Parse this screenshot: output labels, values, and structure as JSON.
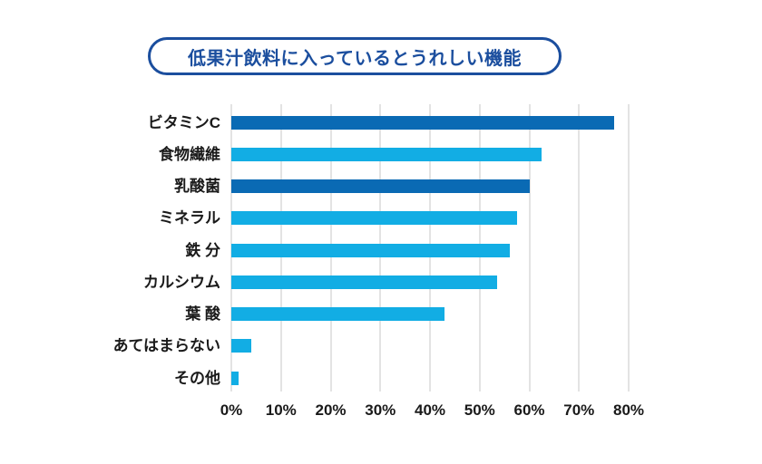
{
  "title": "低果汁飲料に入っているとうれしい機能",
  "colors": {
    "title_blue": "#1b4e9e",
    "dark_bar": "#0a6ab4",
    "light_bar": "#12ade4",
    "gridline": "#e3e3e3",
    "label_text": "#1a1a1a",
    "background": "#ffffff"
  },
  "chart_data": {
    "type": "bar",
    "orientation": "horizontal",
    "title": "低果汁飲料に入っているとうれしい機能",
    "categories": [
      "ビタミンC",
      "食物繊維",
      "乳酸菌",
      "ミネラル",
      "鉄 分",
      "カルシウム",
      "葉 酸",
      "あてはまらない",
      "その他"
    ],
    "values": [
      77,
      62.5,
      60,
      57.5,
      56,
      53.5,
      43,
      4,
      1.5
    ],
    "bar_color_keys": [
      "dark",
      "light",
      "dark",
      "light",
      "light",
      "light",
      "light",
      "light",
      "light"
    ],
    "unit": "%",
    "xlim": [
      0,
      80
    ],
    "x_tick_values": [
      0,
      10,
      20,
      30,
      40,
      50,
      60,
      70,
      80
    ],
    "x_tick_labels": [
      "0%",
      "10%",
      "20%",
      "30%",
      "40%",
      "50%",
      "60%",
      "70%",
      "80%"
    ],
    "grid": "vertical-only",
    "legend": "none",
    "ylabel": "",
    "xlabel": ""
  }
}
